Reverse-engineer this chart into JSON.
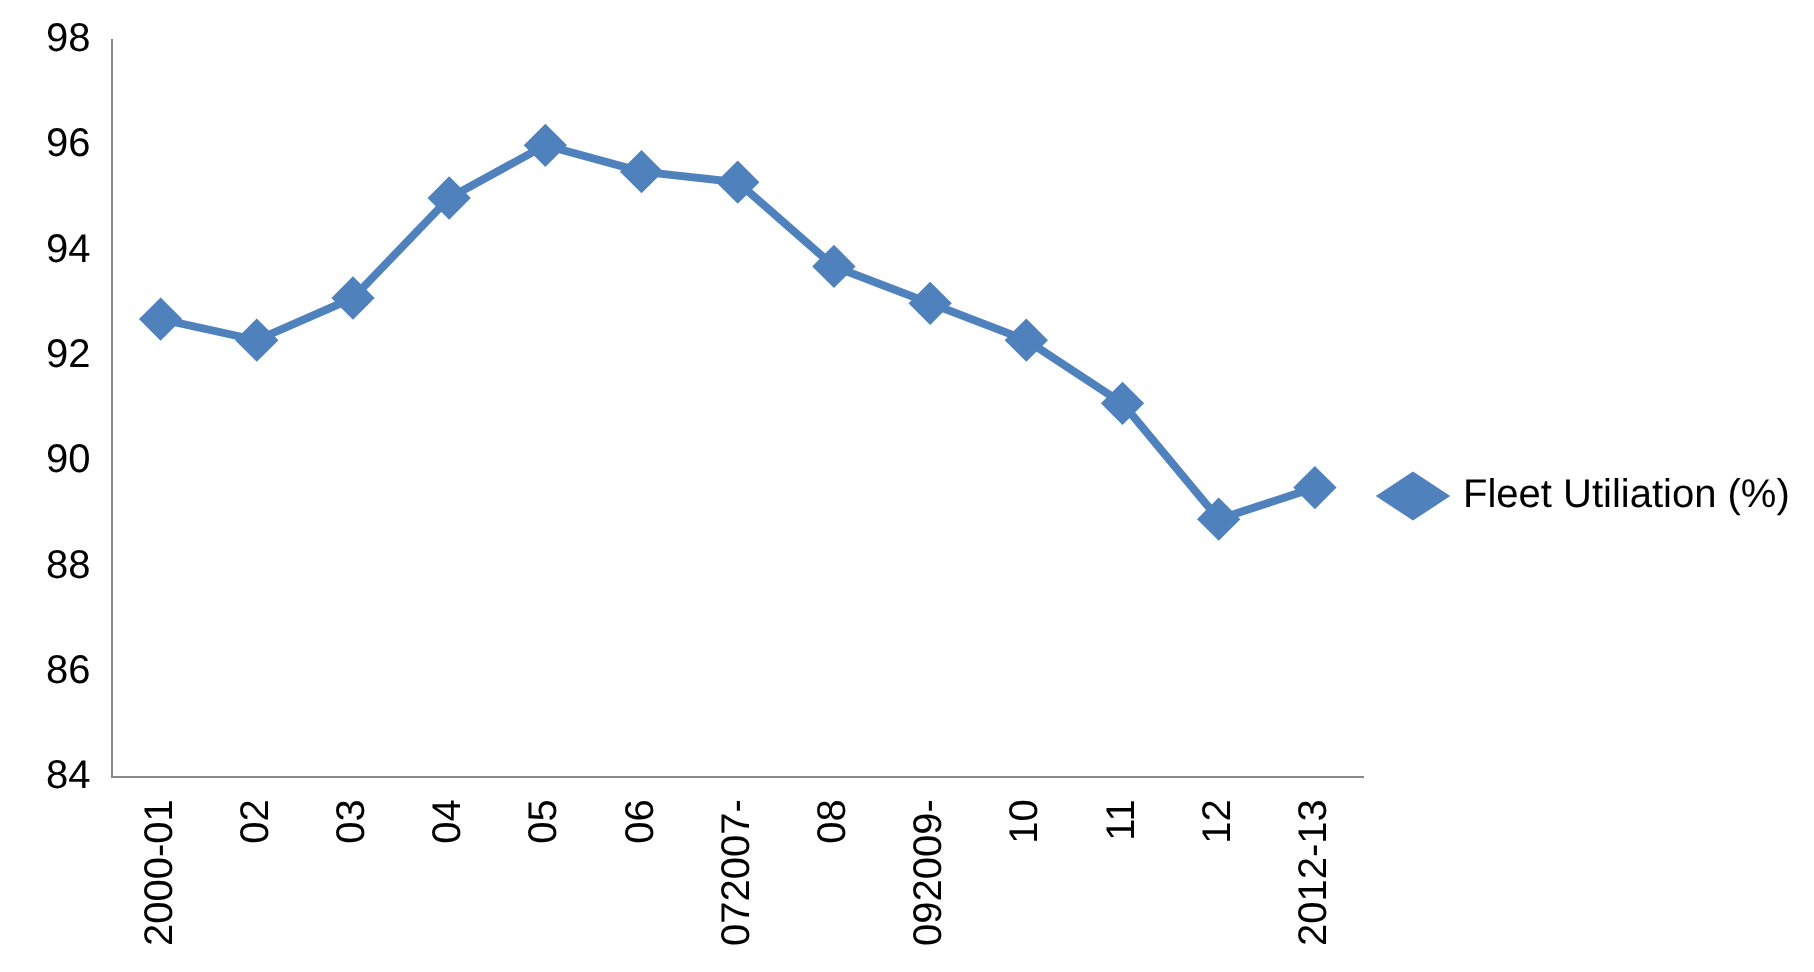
{
  "chart_data": {
    "type": "line",
    "categories": [
      "2000-01",
      "02",
      "03",
      "04",
      "05",
      "06",
      "072007-",
      "08",
      "092009-",
      "10",
      "11",
      "12",
      "2012-13"
    ],
    "series": [
      {
        "name": "Fleet Utiliation (%)",
        "color": "#4f81bd",
        "values": [
          92.7,
          92.3,
          93.1,
          95.0,
          96.0,
          95.5,
          95.3,
          93.7,
          93.0,
          92.3,
          91.1,
          88.9,
          89.5
        ]
      }
    ],
    "ylim": [
      84,
      98
    ],
    "yticks": [
      84,
      86,
      88,
      90,
      92,
      94,
      96,
      98
    ],
    "grid": false,
    "legend": "right",
    "marker": "diamond",
    "line_style": "solid"
  }
}
